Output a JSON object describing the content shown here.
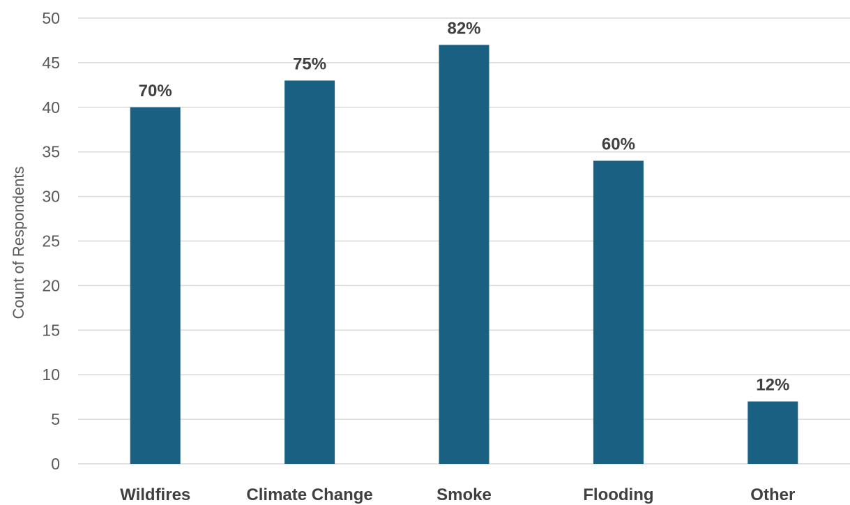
{
  "chart_data": {
    "type": "bar",
    "title": "",
    "xlabel": "",
    "ylabel": "Count of Respondents",
    "ylim": [
      0,
      50
    ],
    "ytick_step": 5,
    "grid": true,
    "categories": [
      "Wildfires",
      "Climate Change",
      "Smoke",
      "Flooding",
      "Other"
    ],
    "values": [
      40,
      43,
      47,
      34,
      7
    ],
    "data_labels": [
      "70%",
      "75%",
      "82%",
      "60%",
      "12%"
    ],
    "bar_color": "#1a6083"
  }
}
